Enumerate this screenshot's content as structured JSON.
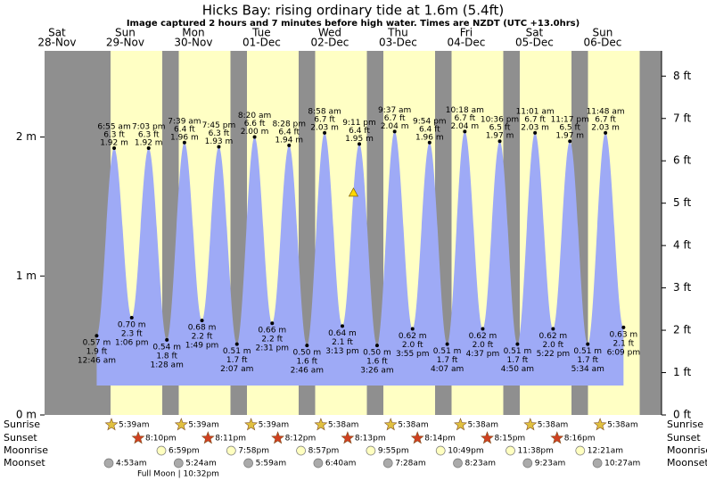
{
  "chart_data": {
    "type": "tide",
    "title": "Hicks Bay: rising  ordinary tide at 1.6m (5.4ft)",
    "subtitle": "Image captured 2 hours and 7 minutes before high water. Times are NZDT (UTC +13.0hrs)",
    "days": {
      "weekdays": [
        "Sat",
        "Sun",
        "Mon",
        "Tue",
        "Wed",
        "Thu",
        "Fri",
        "Sat",
        "Sun"
      ],
      "dates": [
        "28-Nov",
        "29-Nov",
        "30-Nov",
        "01-Dec",
        "02-Dec",
        "03-Dec",
        "04-Dec",
        "05-Dec",
        "06-Dec"
      ]
    },
    "ylim": [
      0,
      2.62
    ],
    "yticks": [
      {
        "value": 0,
        "label": "0 m"
      },
      {
        "value": 1,
        "label": "1 m"
      },
      {
        "value": 2,
        "label": "2 m"
      }
    ],
    "y2lim": [
      0,
      8.596
    ],
    "y2ticks": [
      {
        "value": 0,
        "label": "0 ft"
      },
      {
        "value": 1,
        "label": "1 ft"
      },
      {
        "value": 2,
        "label": "2 ft"
      },
      {
        "value": 3,
        "label": "3 ft"
      },
      {
        "value": 4,
        "label": "4 ft"
      },
      {
        "value": 5,
        "label": "5 ft"
      },
      {
        "value": 6,
        "label": "6 ft"
      },
      {
        "value": 7,
        "label": "7 ft"
      },
      {
        "value": 8,
        "label": "8 ft"
      }
    ],
    "extremes": {
      "times": [
        "12:46 am",
        "6:55 am",
        "1:06 pm",
        "7:03 pm",
        "1:28 am",
        "7:39 am",
        "1:49 pm",
        "7:45 pm",
        "2:07 am",
        "8:20 am",
        "2:31 pm",
        "8:28 pm",
        "2:46 am",
        "8:58 am",
        "3:13 pm",
        "9:11 pm",
        "3:26 am",
        "9:37 am",
        "3:55 pm",
        "9:54 pm",
        "4:07 am",
        "10:18 am",
        "4:37 pm",
        "10:36 pm",
        "4:50 am",
        "11:01 am",
        "5:22 pm",
        "11:17 pm",
        "5:34 am",
        "11:48 am",
        "6:09 pm"
      ],
      "values": [
        0.57,
        1.92,
        0.7,
        1.92,
        0.54,
        1.96,
        0.68,
        1.93,
        0.51,
        2,
        0.66,
        1.94,
        0.5,
        2.03,
        0.64,
        1.95,
        0.5,
        2.04,
        0.62,
        1.96,
        0.51,
        2.04,
        0.62,
        1.97,
        0.51,
        2.03,
        0.62,
        1.97,
        0.51,
        2.03,
        0.63
      ],
      "value_labels": [
        "0.57 m",
        "1.92 m",
        "0.70 m",
        "1.92 m",
        "0.54 m",
        "1.96 m",
        "0.68 m",
        "1.93 m",
        "0.51 m",
        "2.00 m",
        "0.66 m",
        "1.94 m",
        "0.50 m",
        "2.03 m",
        "0.64 m",
        "1.95 m",
        "0.50 m",
        "2.04 m",
        "0.62 m",
        "1.96 m",
        "0.51 m",
        "2.04 m",
        "0.62 m",
        "1.97 m",
        "0.51 m",
        "2.03 m",
        "0.62 m",
        "1.97 m",
        "0.51 m",
        "2.03 m",
        "0.63 m"
      ],
      "feet": [
        1.9,
        6.3,
        2.3,
        6.3,
        1.8,
        6.4,
        2.2,
        6.3,
        1.7,
        6.6,
        2.2,
        6.4,
        1.6,
        6.7,
        2.1,
        6.4,
        1.6,
        6.7,
        2.0,
        6.4,
        1.7,
        6.7,
        2.0,
        6.5,
        1.7,
        6.7,
        2.0,
        6.5,
        1.7,
        6.7,
        2.1
      ],
      "feet_labels": [
        "1.9 ft",
        "6.3 ft",
        "2.3 ft",
        "6.3 ft",
        "1.8 ft",
        "6.4 ft",
        "2.2 ft",
        "6.3 ft",
        "1.7 ft",
        "6.6 ft",
        "2.2 ft",
        "6.4 ft",
        "1.6 ft",
        "6.7 ft",
        "2.1 ft",
        "6.4 ft",
        "1.6 ft",
        "6.7 ft",
        "2.0 ft",
        "6.4 ft",
        "1.7 ft",
        "6.7 ft",
        "2.0 ft",
        "6.5 ft",
        "1.7 ft",
        "6.7 ft",
        "2.0 ft",
        "6.5 ft",
        "1.7 ft",
        "6.7 ft",
        "2.1 ft"
      ]
    },
    "current": {
      "value": 1.6
    },
    "astro": [
      {
        "name": "Sunrise",
        "times": [
          "5:39am",
          "5:39am",
          "5:39am",
          "5:38am",
          "5:38am",
          "5:38am",
          "5:38am",
          "5:38am"
        ]
      },
      {
        "name": "Sunset",
        "times": [
          "8:10pm",
          "8:11pm",
          "8:12pm",
          "8:13pm",
          "8:14pm",
          "8:15pm",
          "8:16pm"
        ]
      },
      {
        "name": "Moonrise",
        "times": [
          "6:59pm",
          "7:58pm",
          "8:57pm",
          "9:55pm",
          "10:49pm",
          "11:38pm",
          "12:21am"
        ]
      },
      {
        "name": "Moonset",
        "times": [
          "4:53am",
          "5:24am",
          "5:59am",
          "6:40am",
          "7:28am",
          "8:23am",
          "9:23am",
          "10:27am"
        ]
      }
    ],
    "moon_phase": "Full Moon | 10:32pm",
    "colors": {
      "day": "#ffffc4",
      "night": "#8f8f8f",
      "water": "#9eaaf6",
      "date": "#d00000"
    }
  }
}
